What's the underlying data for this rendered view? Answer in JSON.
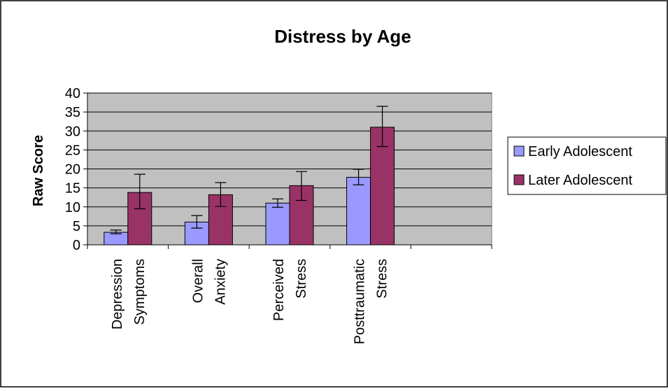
{
  "chart_data": {
    "type": "bar",
    "title": "Distress by Age",
    "xlabel": "",
    "ylabel": "Raw Score",
    "ylim": [
      0,
      40
    ],
    "yticks": [
      0,
      5,
      10,
      15,
      20,
      25,
      30,
      35,
      40
    ],
    "grid": true,
    "legend_position": "right",
    "categories": [
      [
        "Depression",
        "Symptoms"
      ],
      [
        "Overall",
        "Anxiety"
      ],
      [
        "Perceived",
        "Stress"
      ],
      [
        "Posttraumatic",
        "Stress"
      ]
    ],
    "series": [
      {
        "name": "Early Adolescent",
        "color": "#9999ff",
        "values": [
          3.3,
          6.0,
          11.0,
          17.8
        ],
        "error_low": [
          2.9,
          4.4,
          9.9,
          15.8
        ],
        "error_high": [
          3.9,
          7.7,
          12.1,
          19.9
        ]
      },
      {
        "name": "Later Adolescent",
        "color": "#993366",
        "values": [
          13.8,
          13.2,
          15.6,
          31.0
        ],
        "error_low": [
          9.5,
          10.1,
          11.7,
          25.9
        ],
        "error_high": [
          18.6,
          16.4,
          19.3,
          36.5
        ]
      }
    ],
    "plot_background": "#c0c0c0"
  }
}
